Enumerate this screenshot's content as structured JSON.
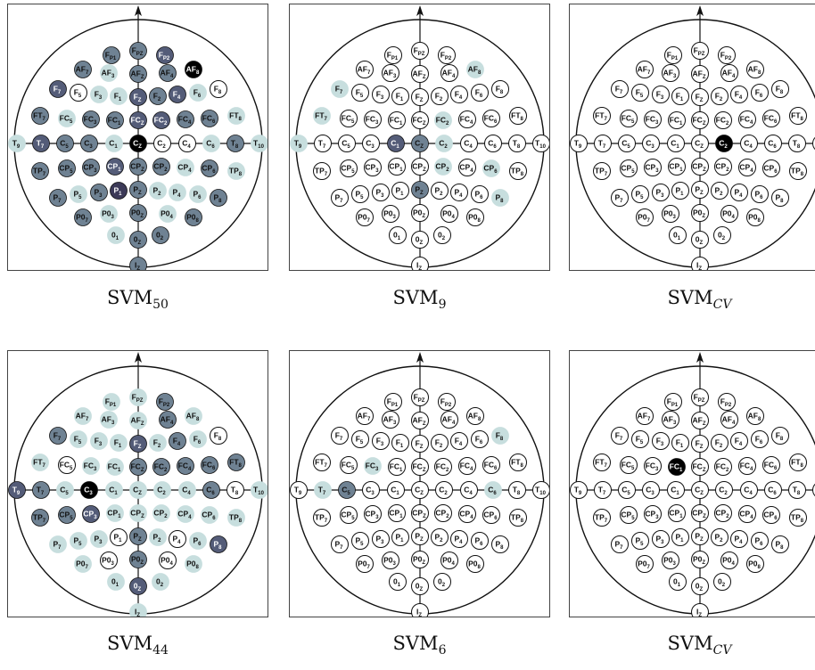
{
  "panels": [
    {
      "caption_main": "SVM",
      "caption_sub": "50",
      "sub_italic": false,
      "levels": {
        "FP1": 2,
        "FPZ": 2,
        "FP2": 3,
        "AF7": 2,
        "AF3": 1,
        "AFZ": 2,
        "AF4": 2,
        "AF8": 5,
        "F7": 3,
        "F5": 0,
        "F3": 1,
        "F1": 1,
        "FZ": 3,
        "F2": 2,
        "F4": 3,
        "F6": 1,
        "F8": 0,
        "FT7": 2,
        "FC5": 1,
        "FC3": 2,
        "FC1": 2,
        "FCZ": 3,
        "FC2": 3,
        "FC4": 2,
        "FC6": 2,
        "FT8": 1,
        "T9": 1,
        "T7": 3,
        "C5": 2,
        "C3": 2,
        "C1": 1,
        "CZ": 5,
        "C2": 0,
        "C4": 0,
        "C6": 1,
        "T8": 2,
        "T10": 1,
        "TP7": 2,
        "CP5": 2,
        "CP3": 2,
        "CP1": 3,
        "CPZ": 2,
        "CP2": 2,
        "CP4": 1,
        "CP6": 2,
        "TP8": 1,
        "P7": 2,
        "P5": 1,
        "P3": 2,
        "P1": 4,
        "PZ": 2,
        "P2": 1,
        "P4": 1,
        "P6": 1,
        "P8": 2,
        "PO7": 2,
        "PO3": 1,
        "POZ": 2,
        "PO4": 1,
        "PO8": 2,
        "O1": 1,
        "OZ": 2,
        "O2": 2,
        "IZ": 2
      }
    },
    {
      "caption_main": "SVM",
      "caption_sub": "9",
      "sub_italic": false,
      "levels": {
        "AF8": 1,
        "F7": 1,
        "FT7": 1,
        "FC2": 1,
        "T9": 1,
        "C1": 3,
        "CZ": 2,
        "C2": 1,
        "CP2": 1,
        "CP6": 1,
        "PZ": 2,
        "P8": 1
      }
    },
    {
      "caption_main": "SVM",
      "caption_sub": "CV",
      "sub_italic": true,
      "levels": {
        "C2": 5
      }
    },
    {
      "caption_main": "SVM",
      "caption_sub": "44",
      "sub_italic": false,
      "levels": {
        "FP1": 1,
        "FPZ": 1,
        "FP2": 2,
        "AF7": 1,
        "AF3": 1,
        "AFZ": 1,
        "AF4": 2,
        "AF8": 1,
        "F7": 2,
        "F5": 1,
        "F3": 1,
        "F1": 1,
        "FZ": 3,
        "F2": 1,
        "F4": 2,
        "F6": 1,
        "F8": 0,
        "FT7": 1,
        "FC5": 0,
        "FC3": 1,
        "FC1": 1,
        "FCZ": 2,
        "FC2": 2,
        "FC4": 2,
        "FC6": 2,
        "FT8": 2,
        "T9": 3,
        "T7": 2,
        "C5": 1,
        "C3": 5,
        "C1": 1,
        "CZ": 1,
        "C2": 1,
        "C4": 1,
        "C6": 2,
        "T8": 0,
        "T10": 1,
        "TP7": 2,
        "CP5": 2,
        "CP3": 3,
        "CP1": 1,
        "CPZ": 1,
        "CP2": 1,
        "CP4": 1,
        "CP6": 1,
        "TP8": 1,
        "P7": 1,
        "P5": 1,
        "P3": 1,
        "P1": 0,
        "PZ": 2,
        "P2": 1,
        "P4": 0,
        "P6": 1,
        "P8": 3,
        "PO7": 1,
        "PO3": 0,
        "POZ": 2,
        "PO4": 0,
        "PO8": 1,
        "O1": 1,
        "OZ": 3,
        "O2": 1,
        "IZ": 1
      }
    },
    {
      "caption_main": "SVM",
      "caption_sub": "6",
      "sub_italic": false,
      "levels": {
        "F8": 1,
        "FC3": 1,
        "T7": 1,
        "C5": 2,
        "C6": 1
      }
    },
    {
      "caption_main": "SVM",
      "caption_sub": "CV",
      "sub_italic": true,
      "levels": {
        "FC1": 5
      }
    }
  ],
  "electrodes": [
    {
      "id": "FP1",
      "label": "F",
      "sub": "P1"
    },
    {
      "id": "FPZ",
      "label": "F",
      "sub": "PZ"
    },
    {
      "id": "FP2",
      "label": "F",
      "sub": "P2"
    },
    {
      "id": "AF7",
      "label": "AF",
      "sub": "7"
    },
    {
      "id": "AF3",
      "label": "AF",
      "sub": "3"
    },
    {
      "id": "AFZ",
      "label": "AF",
      "sub": "Z"
    },
    {
      "id": "AF4",
      "label": "AF",
      "sub": "4"
    },
    {
      "id": "AF8",
      "label": "AF",
      "sub": "8"
    },
    {
      "id": "F7",
      "label": "F",
      "sub": "7"
    },
    {
      "id": "F5",
      "label": "F",
      "sub": "5"
    },
    {
      "id": "F3",
      "label": "F",
      "sub": "3"
    },
    {
      "id": "F1",
      "label": "F",
      "sub": "1"
    },
    {
      "id": "FZ",
      "label": "F",
      "sub": "Z"
    },
    {
      "id": "F2",
      "label": "F",
      "sub": "2"
    },
    {
      "id": "F4",
      "label": "F",
      "sub": "4"
    },
    {
      "id": "F6",
      "label": "F",
      "sub": "6"
    },
    {
      "id": "F8",
      "label": "F",
      "sub": "8"
    },
    {
      "id": "FT7",
      "label": "FT",
      "sub": "7"
    },
    {
      "id": "FC5",
      "label": "FC",
      "sub": "5"
    },
    {
      "id": "FC3",
      "label": "FC",
      "sub": "3"
    },
    {
      "id": "FC1",
      "label": "FC",
      "sub": "1"
    },
    {
      "id": "FCZ",
      "label": "FC",
      "sub": "Z"
    },
    {
      "id": "FC2",
      "label": "FC",
      "sub": "2"
    },
    {
      "id": "FC4",
      "label": "FC",
      "sub": "4"
    },
    {
      "id": "FC6",
      "label": "FC",
      "sub": "6"
    },
    {
      "id": "FT8",
      "label": "FT",
      "sub": "8"
    },
    {
      "id": "T9",
      "label": "T",
      "sub": "9"
    },
    {
      "id": "T7",
      "label": "T",
      "sub": "7"
    },
    {
      "id": "C5",
      "label": "C",
      "sub": "5"
    },
    {
      "id": "C3",
      "label": "C",
      "sub": "3"
    },
    {
      "id": "C1",
      "label": "C",
      "sub": "1"
    },
    {
      "id": "CZ",
      "label": "C",
      "sub": "Z"
    },
    {
      "id": "C2",
      "label": "C",
      "sub": "2"
    },
    {
      "id": "C4",
      "label": "C",
      "sub": "4"
    },
    {
      "id": "C6",
      "label": "C",
      "sub": "6"
    },
    {
      "id": "T8",
      "label": "T",
      "sub": "8"
    },
    {
      "id": "T10",
      "label": "T",
      "sub": "10"
    },
    {
      "id": "TP7",
      "label": "TP",
      "sub": "7"
    },
    {
      "id": "CP5",
      "label": "CP",
      "sub": "5"
    },
    {
      "id": "CP3",
      "label": "CP",
      "sub": "3"
    },
    {
      "id": "CP1",
      "label": "CP",
      "sub": "1"
    },
    {
      "id": "CPZ",
      "label": "CP",
      "sub": "Z"
    },
    {
      "id": "CP2",
      "label": "CP",
      "sub": "2"
    },
    {
      "id": "CP4",
      "label": "CP",
      "sub": "4"
    },
    {
      "id": "CP6",
      "label": "CP",
      "sub": "6"
    },
    {
      "id": "TP8",
      "label": "TP",
      "sub": "8"
    },
    {
      "id": "P7",
      "label": "P",
      "sub": "7"
    },
    {
      "id": "P5",
      "label": "P",
      "sub": "5"
    },
    {
      "id": "P3",
      "label": "P",
      "sub": "3"
    },
    {
      "id": "P1",
      "label": "P",
      "sub": "1"
    },
    {
      "id": "PZ",
      "label": "P",
      "sub": "Z"
    },
    {
      "id": "P2",
      "label": "P",
      "sub": "2"
    },
    {
      "id": "P4",
      "label": "P",
      "sub": "4"
    },
    {
      "id": "P6",
      "label": "P",
      "sub": "6"
    },
    {
      "id": "P8",
      "label": "P",
      "sub": "8"
    },
    {
      "id": "PO7",
      "label": "P0",
      "sub": "7"
    },
    {
      "id": "PO3",
      "label": "P0",
      "sub": "3"
    },
    {
      "id": "POZ",
      "label": "P0",
      "sub": "Z"
    },
    {
      "id": "PO4",
      "label": "P0",
      "sub": "4"
    },
    {
      "id": "PO8",
      "label": "P0",
      "sub": "8"
    },
    {
      "id": "O1",
      "label": "0",
      "sub": "1"
    },
    {
      "id": "OZ",
      "label": "0",
      "sub": "Z"
    },
    {
      "id": "O2",
      "label": "0",
      "sub": "2"
    },
    {
      "id": "IZ",
      "label": "I",
      "sub": "Z"
    }
  ],
  "fill_colors": [
    "#ffffff",
    "#c7dede",
    "#6f8293",
    "#545c78",
    "#3c3a58",
    "#000000"
  ]
}
